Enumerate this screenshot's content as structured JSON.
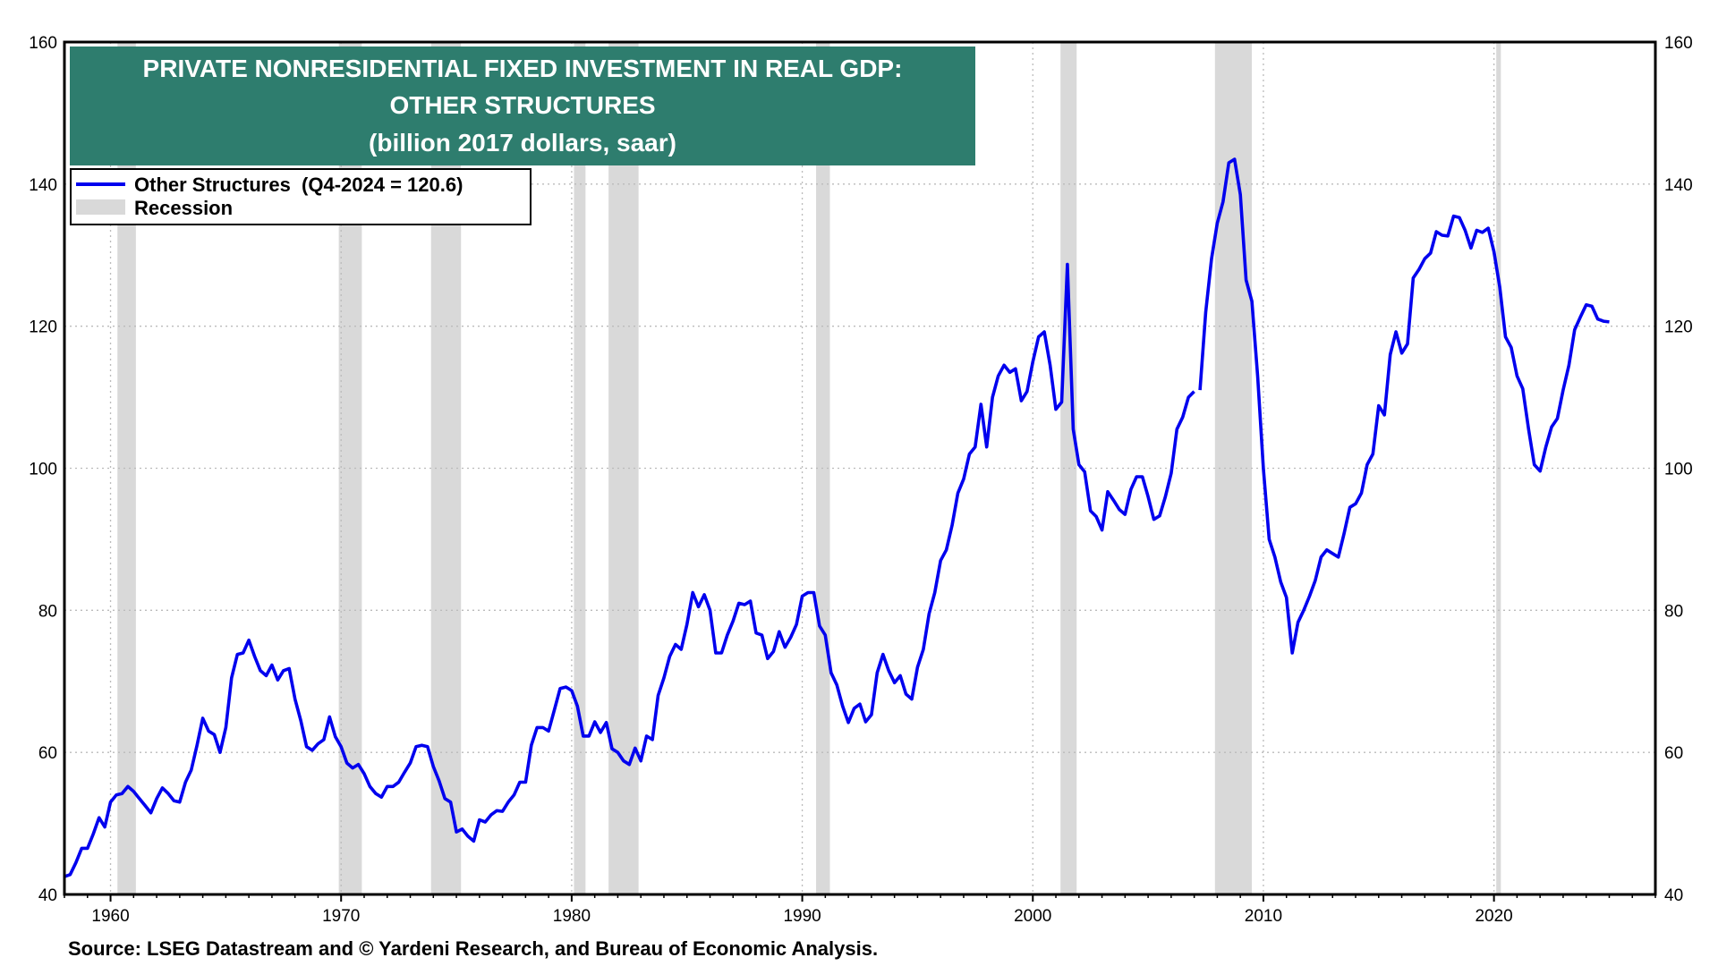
{
  "chart_data": {
    "type": "line",
    "title_lines": [
      "PRIVATE NONRESIDENTIAL FIXED INVESTMENT IN REAL GDP:",
      "OTHER STRUCTURES",
      "(billion 2017 dollars, saar)"
    ],
    "source": "Source: LSEG Datastream and © Yardeni Research, and Bureau of Economic Analysis.",
    "legend": {
      "series_label": "Other Structures  (Q4-2024 = 120.6)",
      "recession_label": "Recession",
      "placement": "top-left"
    },
    "colors": {
      "line": "#0000ee",
      "title_bg": "#2e7d6e",
      "recession": "#d9d9d9",
      "grid": "#bbbbbb"
    },
    "xlim": [
      1958.0,
      2027.0
    ],
    "ylim": [
      40,
      160
    ],
    "x_ticks": [
      1960,
      1970,
      1980,
      1990,
      2000,
      2010,
      2020
    ],
    "x_tick_labels": [
      "1960",
      "1970",
      "1980",
      "1990",
      "2000",
      "2010",
      "2020"
    ],
    "y_ticks": [
      40,
      60,
      80,
      100,
      120,
      140,
      160
    ],
    "y_tick_labels": [
      "40",
      "60",
      "80",
      "100",
      "120",
      "140",
      "160"
    ],
    "grid": true,
    "recessions": [
      [
        1960.3,
        1961.1
      ],
      [
        1969.9,
        1970.9
      ],
      [
        1973.9,
        1975.2
      ],
      [
        1980.1,
        1980.6
      ],
      [
        1981.6,
        1982.9
      ],
      [
        1990.6,
        1991.2
      ],
      [
        2001.2,
        2001.9
      ],
      [
        2007.9,
        2009.5
      ],
      [
        2020.1,
        2020.3
      ]
    ],
    "series": [
      {
        "name": "Other Structures",
        "points": [
          [
            1958.0,
            42.5
          ],
          [
            1958.25,
            42.8
          ],
          [
            1958.5,
            44.5
          ],
          [
            1958.75,
            46.5
          ],
          [
            1959.0,
            46.5
          ],
          [
            1959.25,
            48.5
          ],
          [
            1959.5,
            50.8
          ],
          [
            1959.75,
            49.5
          ],
          [
            1960.0,
            53.0
          ],
          [
            1960.25,
            54.0
          ],
          [
            1960.5,
            54.2
          ],
          [
            1960.75,
            55.2
          ],
          [
            1961.0,
            54.5
          ],
          [
            1961.25,
            53.5
          ],
          [
            1961.5,
            52.5
          ],
          [
            1961.75,
            51.5
          ],
          [
            1962.0,
            53.5
          ],
          [
            1962.25,
            55.0
          ],
          [
            1962.5,
            54.2
          ],
          [
            1962.75,
            53.2
          ],
          [
            1963.0,
            53.0
          ],
          [
            1963.25,
            55.8
          ],
          [
            1963.5,
            57.5
          ],
          [
            1963.75,
            61.0
          ],
          [
            1964.0,
            64.8
          ],
          [
            1964.25,
            63.0
          ],
          [
            1964.5,
            62.5
          ],
          [
            1964.75,
            60.0
          ],
          [
            1965.0,
            63.5
          ],
          [
            1965.25,
            70.5
          ],
          [
            1965.5,
            73.8
          ],
          [
            1965.75,
            74.0
          ],
          [
            1966.0,
            75.8
          ],
          [
            1966.25,
            73.5
          ],
          [
            1966.5,
            71.5
          ],
          [
            1966.75,
            70.8
          ],
          [
            1967.0,
            72.3
          ],
          [
            1967.25,
            70.2
          ],
          [
            1967.5,
            71.5
          ],
          [
            1967.75,
            71.8
          ],
          [
            1968.0,
            67.5
          ],
          [
            1968.25,
            64.5
          ],
          [
            1968.5,
            60.8
          ],
          [
            1968.75,
            60.3
          ],
          [
            1969.0,
            61.2
          ],
          [
            1969.25,
            61.8
          ],
          [
            1969.5,
            65.0
          ],
          [
            1969.75,
            62.2
          ],
          [
            1970.0,
            60.8
          ],
          [
            1970.25,
            58.5
          ],
          [
            1970.5,
            57.8
          ],
          [
            1970.75,
            58.3
          ],
          [
            1971.0,
            57.0
          ],
          [
            1971.25,
            55.2
          ],
          [
            1971.5,
            54.2
          ],
          [
            1971.75,
            53.7
          ],
          [
            1972.0,
            55.2
          ],
          [
            1972.25,
            55.2
          ],
          [
            1972.5,
            55.8
          ],
          [
            1972.75,
            57.2
          ],
          [
            1973.0,
            58.5
          ],
          [
            1973.25,
            60.8
          ],
          [
            1973.5,
            61.0
          ],
          [
            1973.75,
            60.8
          ],
          [
            1974.0,
            58.0
          ],
          [
            1974.25,
            56.0
          ],
          [
            1974.5,
            53.5
          ],
          [
            1974.75,
            53.0
          ],
          [
            1975.0,
            48.8
          ],
          [
            1975.25,
            49.2
          ],
          [
            1975.5,
            48.2
          ],
          [
            1975.75,
            47.5
          ],
          [
            1976.0,
            50.5
          ],
          [
            1976.25,
            50.2
          ],
          [
            1976.5,
            51.2
          ],
          [
            1976.75,
            51.8
          ],
          [
            1977.0,
            51.7
          ],
          [
            1977.25,
            53.0
          ],
          [
            1977.5,
            54.0
          ],
          [
            1977.75,
            55.8
          ],
          [
            1978.0,
            55.8
          ],
          [
            1978.25,
            61.0
          ],
          [
            1978.5,
            63.5
          ],
          [
            1978.75,
            63.5
          ],
          [
            1979.0,
            63.0
          ],
          [
            1979.25,
            66.0
          ],
          [
            1979.5,
            69.0
          ],
          [
            1979.75,
            69.2
          ],
          [
            1980.0,
            68.7
          ],
          [
            1980.25,
            66.5
          ],
          [
            1980.5,
            62.3
          ],
          [
            1980.75,
            62.3
          ],
          [
            1981.0,
            64.3
          ],
          [
            1981.25,
            62.8
          ],
          [
            1981.5,
            64.2
          ],
          [
            1981.75,
            60.5
          ],
          [
            1982.0,
            60.0
          ],
          [
            1982.25,
            58.8
          ],
          [
            1982.5,
            58.3
          ],
          [
            1982.75,
            60.6
          ],
          [
            1983.0,
            58.8
          ],
          [
            1983.25,
            62.3
          ],
          [
            1983.5,
            61.8
          ],
          [
            1983.75,
            68.0
          ],
          [
            1984.0,
            70.5
          ],
          [
            1984.25,
            73.5
          ],
          [
            1984.5,
            75.2
          ],
          [
            1984.75,
            74.5
          ],
          [
            1985.0,
            78.0
          ],
          [
            1985.25,
            82.5
          ],
          [
            1985.5,
            80.5
          ],
          [
            1985.75,
            82.2
          ],
          [
            1986.0,
            80.0
          ],
          [
            1986.25,
            74.0
          ],
          [
            1986.5,
            74.0
          ],
          [
            1986.75,
            76.5
          ],
          [
            1987.0,
            78.5
          ],
          [
            1987.25,
            81.0
          ],
          [
            1987.5,
            80.8
          ],
          [
            1987.75,
            81.3
          ],
          [
            1988.0,
            76.8
          ],
          [
            1988.25,
            76.5
          ],
          [
            1988.5,
            73.2
          ],
          [
            1988.75,
            74.2
          ],
          [
            1989.0,
            77.0
          ],
          [
            1989.25,
            74.8
          ],
          [
            1989.5,
            76.2
          ],
          [
            1989.75,
            78.0
          ],
          [
            1990.0,
            82.0
          ],
          [
            1990.25,
            82.5
          ],
          [
            1990.5,
            82.5
          ],
          [
            1990.75,
            77.8
          ],
          [
            1991.0,
            76.5
          ],
          [
            1991.25,
            71.2
          ],
          [
            1991.5,
            69.5
          ],
          [
            1991.75,
            66.5
          ],
          [
            1992.0,
            64.2
          ],
          [
            1992.25,
            66.2
          ],
          [
            1992.5,
            66.8
          ],
          [
            1992.75,
            64.3
          ],
          [
            1993.0,
            65.3
          ],
          [
            1993.25,
            71.2
          ],
          [
            1993.5,
            73.8
          ],
          [
            1993.75,
            71.5
          ],
          [
            1994.0,
            69.8
          ],
          [
            1994.25,
            70.8
          ],
          [
            1994.5,
            68.2
          ],
          [
            1994.75,
            67.5
          ],
          [
            1995.0,
            72.0
          ],
          [
            1995.25,
            74.5
          ],
          [
            1995.5,
            79.5
          ],
          [
            1995.75,
            82.5
          ],
          [
            1996.0,
            87.0
          ],
          [
            1996.25,
            88.5
          ],
          [
            1996.5,
            92.0
          ],
          [
            1996.75,
            96.5
          ],
          [
            1997.0,
            98.5
          ],
          [
            1997.25,
            102.0
          ],
          [
            1997.5,
            103.0
          ],
          [
            1997.75,
            109.0
          ],
          [
            1998.0,
            103.0
          ],
          [
            1998.25,
            110.0
          ],
          [
            1998.5,
            113.0
          ],
          [
            1998.75,
            114.5
          ],
          [
            1999.0,
            113.5
          ],
          [
            1999.25,
            114.0
          ],
          [
            1999.5,
            109.5
          ],
          [
            1999.75,
            110.8
          ],
          [
            2000.0,
            115.0
          ],
          [
            2000.25,
            118.5
          ],
          [
            2000.5,
            119.2
          ],
          [
            2000.75,
            114.5
          ],
          [
            2001.0,
            108.3
          ],
          [
            2001.25,
            109.3
          ],
          [
            2001.5,
            128.7
          ],
          [
            2001.75,
            105.5
          ],
          [
            2002.0,
            100.5
          ],
          [
            2002.25,
            99.5
          ],
          [
            2002.5,
            94.0
          ],
          [
            2002.75,
            93.2
          ],
          [
            2003.0,
            91.3
          ],
          [
            2003.25,
            96.7
          ],
          [
            2003.5,
            95.5
          ],
          [
            2003.75,
            94.2
          ],
          [
            2004.0,
            93.5
          ],
          [
            2004.25,
            97.0
          ],
          [
            2004.5,
            98.8
          ],
          [
            2004.75,
            98.8
          ],
          [
            2005.0,
            96.0
          ],
          [
            2005.25,
            92.8
          ],
          [
            2005.5,
            93.3
          ],
          [
            2005.75,
            96.0
          ],
          [
            2006.0,
            99.3
          ],
          [
            2006.25,
            105.5
          ],
          [
            2006.5,
            107.2
          ],
          [
            2006.75,
            110.0
          ],
          [
            2007.0,
            110.8
          ],
          [
            2007.25,
            111.0
          ],
          [
            2007.5,
            122.0
          ],
          [
            2007.75,
            129.5
          ],
          [
            2008.0,
            134.5
          ],
          [
            2008.25,
            137.5
          ],
          [
            2008.5,
            143.0
          ],
          [
            2008.75,
            143.5
          ],
          [
            2009.0,
            138.5
          ],
          [
            2009.25,
            126.5
          ],
          [
            2009.5,
            123.5
          ],
          [
            2009.75,
            113.0
          ],
          [
            2010.0,
            100.0
          ],
          [
            2010.25,
            90.0
          ],
          [
            2010.5,
            87.5
          ],
          [
            2010.75,
            84.0
          ],
          [
            2011.0,
            81.8
          ],
          [
            2011.25,
            74.0
          ],
          [
            2011.5,
            78.3
          ],
          [
            2011.75,
            80.0
          ],
          [
            2012.0,
            82.0
          ],
          [
            2012.25,
            84.2
          ],
          [
            2012.5,
            87.5
          ],
          [
            2012.75,
            88.5
          ],
          [
            2013.0,
            88.0
          ],
          [
            2013.25,
            87.5
          ],
          [
            2013.5,
            90.8
          ],
          [
            2013.75,
            94.5
          ],
          [
            2014.0,
            95.0
          ],
          [
            2014.25,
            96.5
          ],
          [
            2014.5,
            100.5
          ],
          [
            2014.75,
            102.0
          ],
          [
            2015.0,
            108.8
          ],
          [
            2015.25,
            107.5
          ],
          [
            2015.5,
            116.0
          ],
          [
            2015.75,
            119.2
          ],
          [
            2016.0,
            116.2
          ],
          [
            2016.25,
            117.5
          ],
          [
            2016.5,
            126.8
          ],
          [
            2016.75,
            128.0
          ],
          [
            2017.0,
            129.5
          ],
          [
            2017.25,
            130.3
          ],
          [
            2017.5,
            133.3
          ],
          [
            2017.75,
            132.8
          ],
          [
            2018.0,
            132.7
          ],
          [
            2018.25,
            135.5
          ],
          [
            2018.5,
            135.3
          ],
          [
            2018.75,
            133.5
          ],
          [
            2019.0,
            131.0
          ],
          [
            2019.25,
            133.5
          ],
          [
            2019.5,
            133.2
          ],
          [
            2019.75,
            133.8
          ],
          [
            2020.0,
            130.5
          ],
          [
            2020.25,
            125.5
          ],
          [
            2020.5,
            118.5
          ],
          [
            2020.75,
            117.0
          ],
          [
            2021.0,
            113.0
          ],
          [
            2021.25,
            111.2
          ],
          [
            2021.5,
            105.5
          ],
          [
            2021.75,
            100.5
          ],
          [
            2022.0,
            99.6
          ],
          [
            2022.25,
            103.0
          ],
          [
            2022.5,
            105.8
          ],
          [
            2022.75,
            107.0
          ],
          [
            2023.0,
            111.0
          ],
          [
            2023.25,
            114.5
          ],
          [
            2023.5,
            119.5
          ],
          [
            2023.75,
            121.3
          ],
          [
            2024.0,
            123.0
          ],
          [
            2024.25,
            122.8
          ],
          [
            2024.5,
            121.0
          ],
          [
            2024.75,
            120.7
          ],
          [
            2025.0,
            120.6
          ]
        ],
        "breaks": [
          [
            2007.0,
            2007.25
          ]
        ]
      }
    ]
  }
}
